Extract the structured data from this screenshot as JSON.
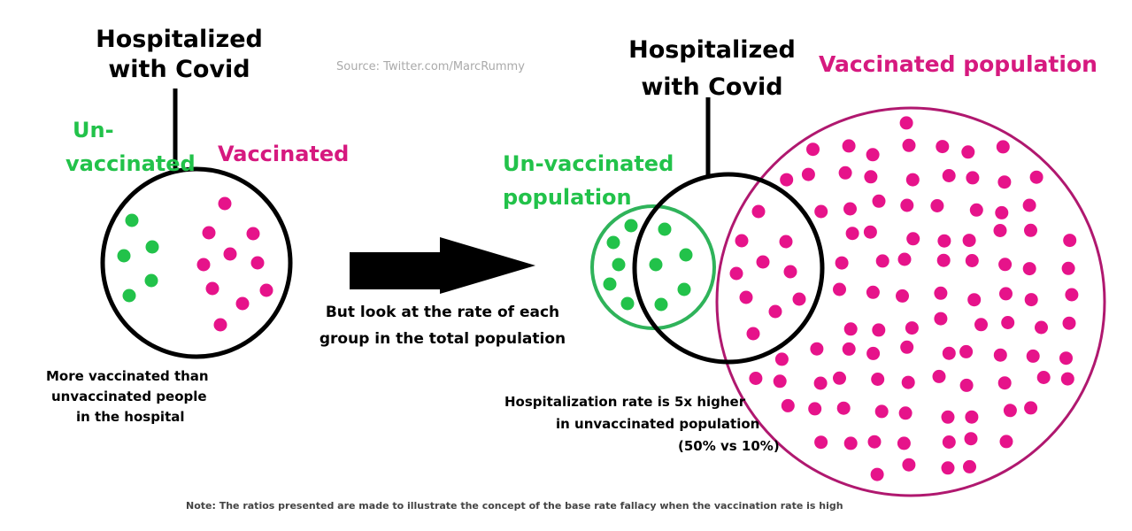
{
  "source": "Source:  Twitter.com/MarcRummy",
  "left": {
    "hospital_label": [
      "Hospitalized",
      "with Covid"
    ],
    "unvaccinated_label": [
      "Un-",
      "vaccinated"
    ],
    "vaccinated_label": "Vaccinated",
    "caption": [
      "More vaccinated than",
      "unvaccinated people",
      "in the hospital"
    ]
  },
  "arrow_caption": [
    "But look at the rate of each",
    "group in the total population"
  ],
  "right": {
    "hospital_label": [
      "Hospitalized",
      "with Covid"
    ],
    "unvaccinated_label": [
      "Un-vaccinated",
      "population"
    ],
    "vaccinated_label": "Vaccinated population",
    "caption": [
      "Hospitalization rate is 5x higher",
      "in unvaccinated population",
      "(50% vs 10%)"
    ]
  },
  "note": "Note:  The ratios presented are made to illustrate the concept of the base rate fallacy when the vaccination rate is high",
  "colors": {
    "green": "#22c24a",
    "pink": "#e6138a",
    "pink_outline": "#b0186f",
    "green_outline": "#2fb35a"
  }
}
